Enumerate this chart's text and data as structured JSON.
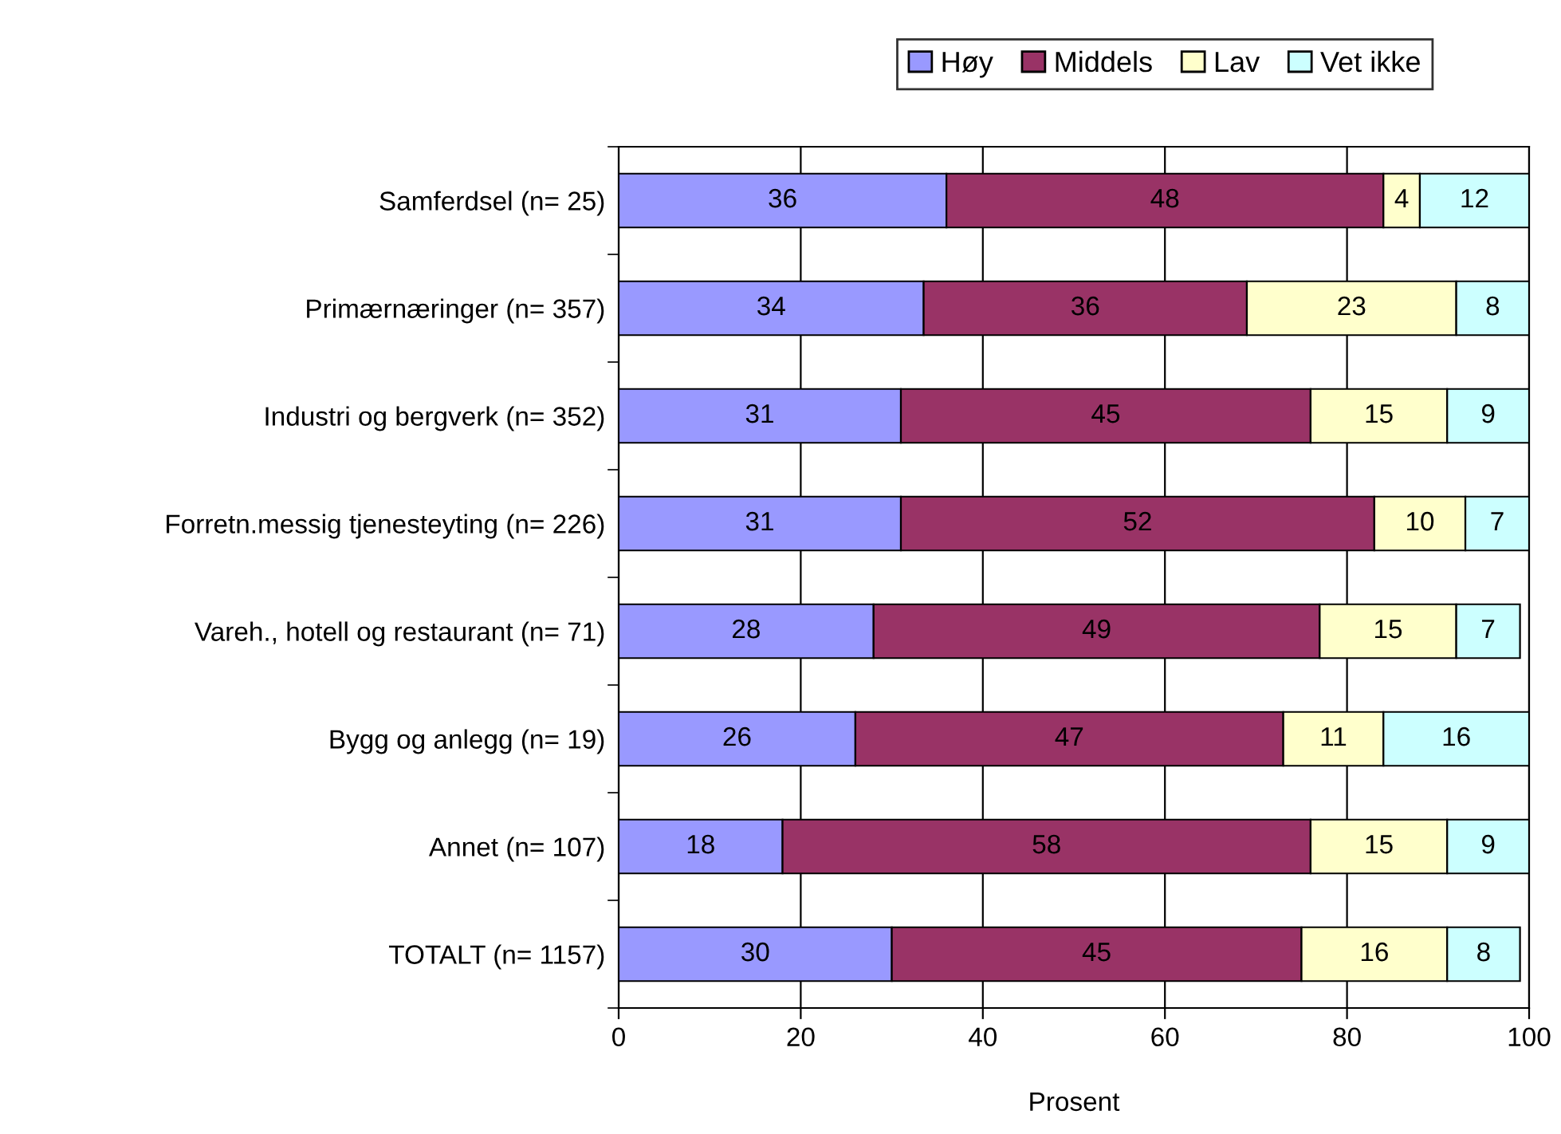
{
  "chart_data": {
    "type": "bar",
    "orientation": "horizontal",
    "stacked": true,
    "xlabel": "Prosent",
    "categories": [
      "Samferdsel (n= 25)",
      "Primærnæringer (n= 357)",
      "Industri og bergverk (n= 352)",
      "Forretn.messig tjenesteyting (n= 226)",
      "Vareh., hotell og restaurant (n= 71)",
      "Bygg og anlegg (n= 19)",
      "Annet (n= 107)",
      "TOTALT (n= 1157)"
    ],
    "series": [
      {
        "name": "Høy",
        "color": "#9999ff",
        "values": [
          36,
          33.5,
          31,
          31,
          28,
          26,
          18,
          30
        ],
        "value_labels": [
          "36",
          "34",
          "31",
          "31",
          "28",
          "26",
          "18",
          "30"
        ]
      },
      {
        "name": "Middels",
        "color": "#993366",
        "values": [
          48,
          35.5,
          45,
          52,
          49,
          47,
          58,
          45
        ],
        "value_labels": [
          "48",
          "36",
          "45",
          "52",
          "49",
          "47",
          "58",
          "45"
        ]
      },
      {
        "name": "Lav",
        "color": "#ffffcc",
        "values": [
          4,
          23,
          15,
          10,
          15,
          11,
          15,
          16
        ],
        "value_labels": [
          "4",
          "23",
          "15",
          "10",
          "15",
          "11",
          "15",
          "16"
        ]
      },
      {
        "name": "Vet ikke",
        "color": "#ccffff",
        "values": [
          12,
          8,
          9,
          7,
          7,
          16,
          9,
          8
        ],
        "value_labels": [
          "12",
          "8",
          "9",
          "7",
          "7",
          "16",
          "9",
          "8"
        ]
      }
    ],
    "xlim": [
      0,
      100
    ],
    "xticks": [
      0,
      20,
      40,
      60,
      80,
      100
    ],
    "grid": "x",
    "legend": "top"
  }
}
